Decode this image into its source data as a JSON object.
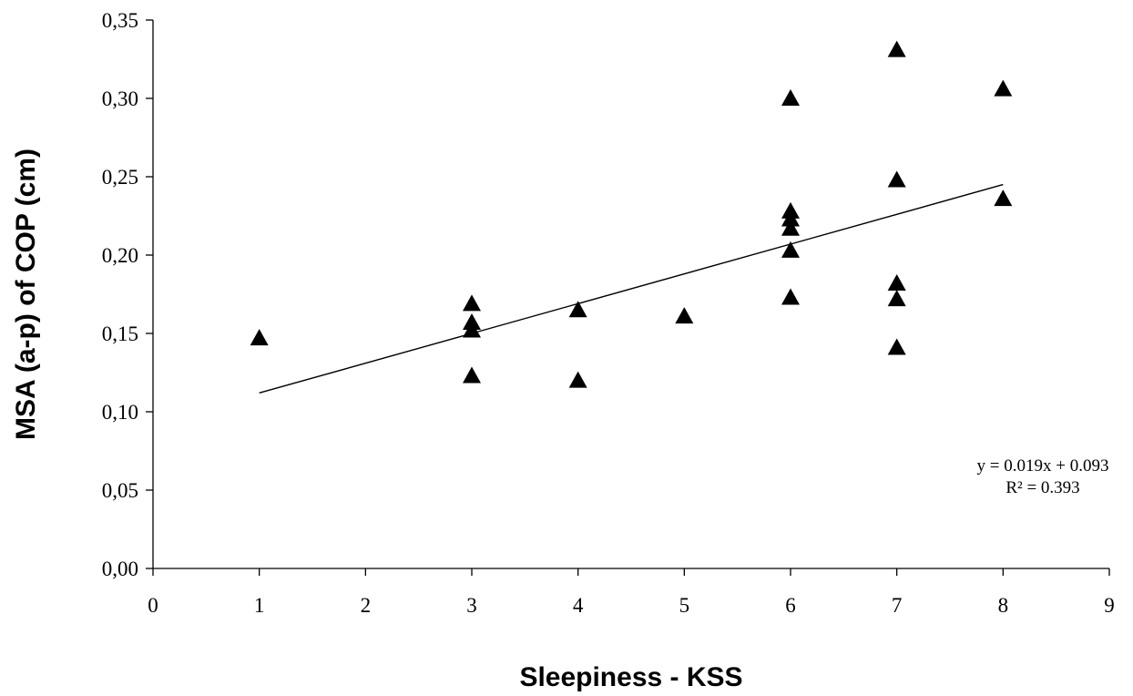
{
  "chart_data": {
    "type": "scatter",
    "xlabel": "Sleepiness - KSS",
    "ylabel": "MSA (a-p)  of COP (cm)",
    "xlim": [
      0,
      9
    ],
    "ylim": [
      0,
      0.35
    ],
    "x_ticks": [
      "0",
      "1",
      "2",
      "3",
      "4",
      "5",
      "6",
      "7",
      "8",
      "9"
    ],
    "y_ticks": [
      "0,00",
      "0,05",
      "0,10",
      "0,15",
      "0,20",
      "0,25",
      "0,30",
      "0,35"
    ],
    "grid": false,
    "marker": "triangle",
    "marker_color": "#000000",
    "points": [
      {
        "x": 1,
        "y": 0.147
      },
      {
        "x": 3,
        "y": 0.169
      },
      {
        "x": 3,
        "y": 0.157
      },
      {
        "x": 3,
        "y": 0.152
      },
      {
        "x": 3,
        "y": 0.123
      },
      {
        "x": 4,
        "y": 0.165
      },
      {
        "x": 4,
        "y": 0.12
      },
      {
        "x": 5,
        "y": 0.161
      },
      {
        "x": 6,
        "y": 0.3
      },
      {
        "x": 6,
        "y": 0.228
      },
      {
        "x": 6,
        "y": 0.223
      },
      {
        "x": 6,
        "y": 0.217
      },
      {
        "x": 6,
        "y": 0.203
      },
      {
        "x": 6,
        "y": 0.173
      },
      {
        "x": 7,
        "y": 0.331
      },
      {
        "x": 7,
        "y": 0.248
      },
      {
        "x": 7,
        "y": 0.182
      },
      {
        "x": 7,
        "y": 0.172
      },
      {
        "x": 7,
        "y": 0.141
      },
      {
        "x": 8,
        "y": 0.306
      },
      {
        "x": 8,
        "y": 0.236
      }
    ],
    "trendline": {
      "slope": 0.019,
      "intercept": 0.093,
      "x_range": [
        1,
        8
      ],
      "equation": "y = 0.019x + 0.093",
      "r_squared": "R² = 0.393"
    }
  }
}
